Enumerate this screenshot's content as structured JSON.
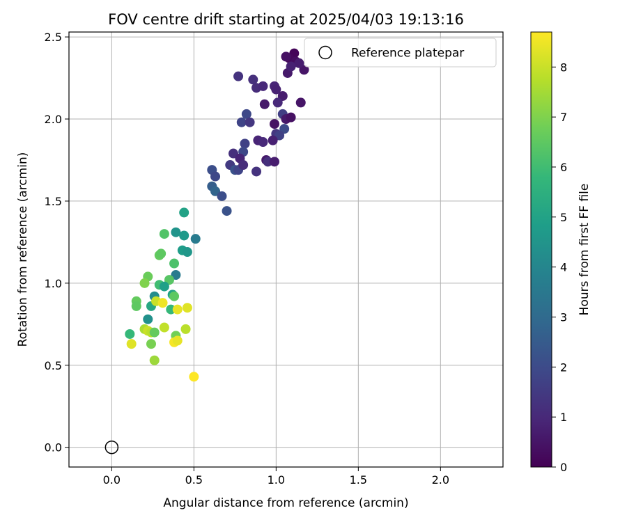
{
  "chart_data": {
    "type": "scatter",
    "title": "FOV centre drift starting at 2025/04/03 19:13:16",
    "xlabel": "Angular distance from reference (arcmin)",
    "ylabel": "Rotation from reference (arcmin)",
    "xlim": [
      -0.26,
      2.38
    ],
    "ylim": [
      -0.12,
      2.53
    ],
    "xticks": [
      0.0,
      0.5,
      1.0,
      1.5,
      2.0
    ],
    "xtick_labels": [
      "0.0",
      "0.5",
      "1.0",
      "1.5",
      "2.0"
    ],
    "yticks": [
      0.0,
      0.5,
      1.0,
      1.5,
      2.0,
      2.5
    ],
    "ytick_labels": [
      "0.0",
      "0.5",
      "1.0",
      "1.5",
      "2.0",
      "2.5"
    ],
    "grid": true,
    "legend": {
      "placement": "top-right",
      "label": "Reference platepar"
    },
    "reference_point": {
      "x": 0.0,
      "y": 0.0
    },
    "colorbar": {
      "label": "Hours from first FF file",
      "range": [
        0,
        8.7
      ],
      "ticks": [
        0,
        1,
        2,
        3,
        4,
        5,
        6,
        7,
        8
      ],
      "tick_labels": [
        "0",
        "1",
        "2",
        "3",
        "4",
        "5",
        "6",
        "7",
        "8"
      ],
      "colormap": "viridis"
    },
    "colormap_stops": [
      "#440154",
      "#482878",
      "#3e4989",
      "#31688e",
      "#26828e",
      "#1f9e89",
      "#35b779",
      "#6ece58",
      "#b5de2b",
      "#fde725"
    ],
    "points": [
      [
        1.11,
        2.4,
        0.1
      ],
      [
        1.08,
        2.37,
        0.2
      ],
      [
        1.12,
        2.35,
        0.3
      ],
      [
        1.06,
        2.38,
        0.4
      ],
      [
        1.17,
        2.3,
        0.5
      ],
      [
        1.07,
        2.28,
        0.6
      ],
      [
        1.14,
        2.34,
        0.7
      ],
      [
        1.09,
        2.32,
        0.8
      ],
      [
        0.77,
        2.26,
        1.3
      ],
      [
        0.86,
        2.24,
        1.2
      ],
      [
        0.88,
        2.19,
        1.1
      ],
      [
        0.92,
        2.2,
        1.0
      ],
      [
        0.99,
        2.2,
        0.9
      ],
      [
        1.0,
        2.18,
        0.8
      ],
      [
        1.04,
        2.14,
        0.7
      ],
      [
        1.01,
        2.1,
        1.0
      ],
      [
        0.93,
        2.09,
        0.6
      ],
      [
        1.15,
        2.1,
        0.5
      ],
      [
        0.82,
        2.03,
        1.9
      ],
      [
        1.04,
        2.03,
        1.6
      ],
      [
        1.06,
        2.0,
        0.6
      ],
      [
        1.09,
        2.01,
        0.4
      ],
      [
        0.79,
        1.98,
        1.8
      ],
      [
        0.84,
        1.98,
        1.4
      ],
      [
        0.99,
        1.97,
        0.4
      ],
      [
        1.05,
        1.94,
        2.0
      ],
      [
        1.0,
        1.91,
        1.4
      ],
      [
        1.02,
        1.9,
        1.7
      ],
      [
        0.89,
        1.87,
        0.9
      ],
      [
        0.92,
        1.86,
        1.0
      ],
      [
        0.98,
        1.87,
        0.8
      ],
      [
        0.81,
        1.85,
        1.7
      ],
      [
        0.8,
        1.8,
        1.9
      ],
      [
        0.74,
        1.79,
        1.2
      ],
      [
        0.78,
        1.76,
        0.9
      ],
      [
        0.94,
        1.75,
        0.6
      ],
      [
        0.95,
        1.74,
        1.2
      ],
      [
        0.99,
        1.74,
        0.7
      ],
      [
        0.72,
        1.72,
        1.5
      ],
      [
        0.75,
        1.69,
        2.2
      ],
      [
        0.77,
        1.69,
        1.8
      ],
      [
        0.8,
        1.72,
        1.1
      ],
      [
        0.88,
        1.68,
        1.3
      ],
      [
        0.61,
        1.69,
        2.1
      ],
      [
        0.63,
        1.65,
        1.9
      ],
      [
        0.61,
        1.59,
        2.6
      ],
      [
        0.63,
        1.56,
        2.8
      ],
      [
        0.67,
        1.53,
        2.1
      ],
      [
        0.7,
        1.44,
        2.2
      ],
      [
        0.44,
        1.43,
        5.0
      ],
      [
        0.51,
        1.27,
        3.6
      ],
      [
        0.39,
        1.31,
        4.5
      ],
      [
        0.44,
        1.29,
        4.7
      ],
      [
        0.32,
        1.3,
        6.3
      ],
      [
        0.43,
        1.2,
        4.8
      ],
      [
        0.46,
        1.19,
        4.6
      ],
      [
        0.29,
        1.17,
        6.6
      ],
      [
        0.3,
        1.18,
        6.5
      ],
      [
        0.38,
        1.12,
        6.2
      ],
      [
        0.39,
        1.05,
        3.6
      ],
      [
        0.35,
        1.02,
        6.4
      ],
      [
        0.22,
        1.04,
        6.7
      ],
      [
        0.29,
        0.99,
        6.0
      ],
      [
        0.2,
        1.0,
        7.0
      ],
      [
        0.32,
        0.98,
        4.9
      ],
      [
        0.37,
        0.93,
        5.0
      ],
      [
        0.38,
        0.92,
        6.5
      ],
      [
        0.26,
        0.92,
        4.2
      ],
      [
        0.15,
        0.89,
        6.6
      ],
      [
        0.15,
        0.86,
        6.5
      ],
      [
        0.24,
        0.86,
        5.2
      ],
      [
        0.36,
        0.84,
        5.8
      ],
      [
        0.27,
        0.89,
        8.0
      ],
      [
        0.31,
        0.88,
        8.5
      ],
      [
        0.4,
        0.84,
        8.4
      ],
      [
        0.46,
        0.85,
        8.3
      ],
      [
        0.22,
        0.78,
        4.4
      ],
      [
        0.2,
        0.72,
        7.6
      ],
      [
        0.22,
        0.71,
        8.0
      ],
      [
        0.24,
        0.7,
        7.8
      ],
      [
        0.26,
        0.7,
        6.6
      ],
      [
        0.11,
        0.69,
        5.8
      ],
      [
        0.32,
        0.73,
        7.9
      ],
      [
        0.45,
        0.72,
        7.8
      ],
      [
        0.39,
        0.68,
        6.8
      ],
      [
        0.38,
        0.64,
        8.6
      ],
      [
        0.4,
        0.65,
        8.4
      ],
      [
        0.24,
        0.63,
        6.9
      ],
      [
        0.12,
        0.63,
        8.3
      ],
      [
        0.26,
        0.53,
        7.4
      ],
      [
        0.5,
        0.43,
        8.7
      ]
    ]
  }
}
